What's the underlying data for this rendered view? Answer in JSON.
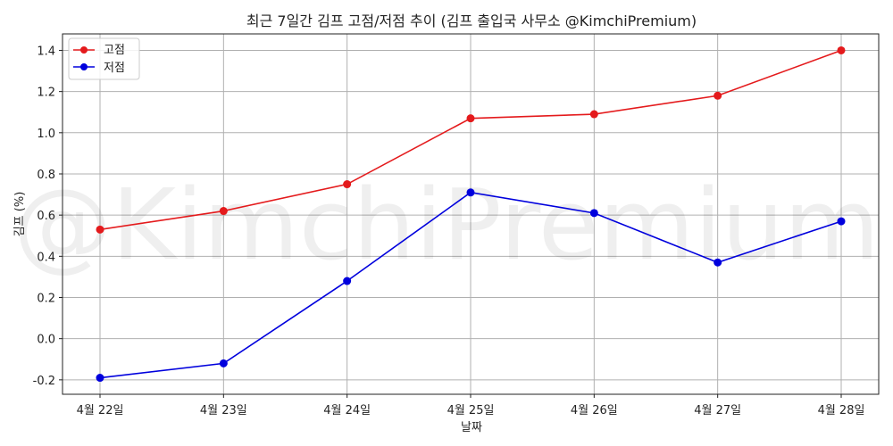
{
  "chart_data": {
    "type": "line",
    "title": "최근 7일간 김프 고점/저점 추이 (김프 출입국 사무소 @KimchiPremium)",
    "xlabel": "날짜",
    "ylabel": "김프 (%)",
    "categories": [
      "4월 22일",
      "4월 23일",
      "4월 24일",
      "4월 25일",
      "4월 26일",
      "4월 27일",
      "4월 28일"
    ],
    "series": [
      {
        "name": "고점",
        "color": "#e41a1c",
        "values": [
          0.53,
          0.62,
          0.75,
          1.07,
          1.09,
          1.18,
          1.4
        ]
      },
      {
        "name": "저점",
        "color": "#0000dd",
        "values": [
          -0.19,
          -0.12,
          0.28,
          0.71,
          0.61,
          0.37,
          0.57
        ]
      }
    ],
    "ylim": [
      -0.27,
      1.48
    ],
    "yticks": [
      -0.2,
      0.0,
      0.2,
      0.4,
      0.6,
      0.8,
      1.0,
      1.2,
      1.4
    ],
    "ytick_labels": [
      "-0.2",
      "0.0",
      "0.2",
      "0.4",
      "0.6",
      "0.8",
      "1.0",
      "1.2",
      "1.4"
    ],
    "grid": true,
    "legend_position": "top-left",
    "watermark": "@KimchiPremium"
  }
}
